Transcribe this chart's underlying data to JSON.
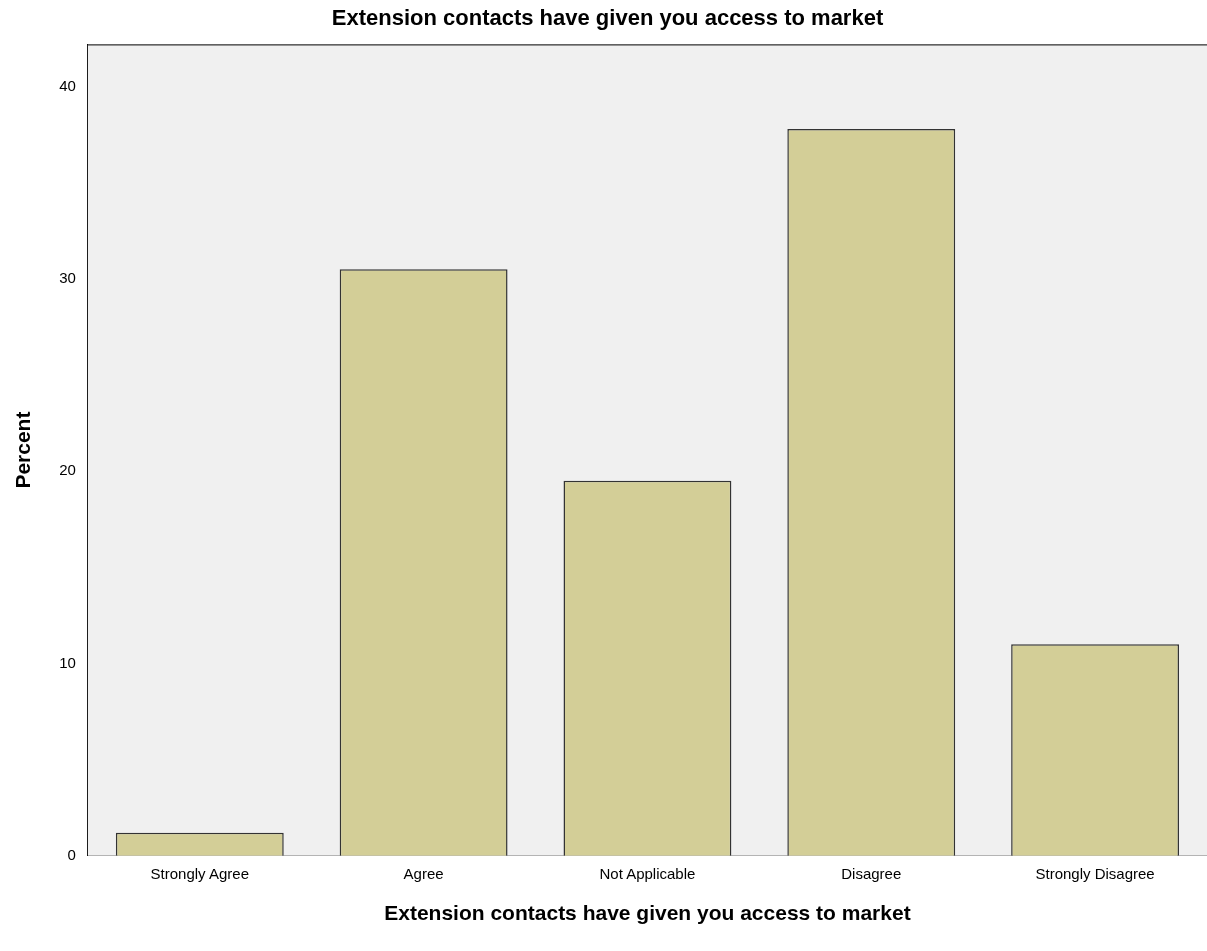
{
  "chart_data": {
    "type": "bar",
    "title": "Extension contacts have given you access to market",
    "xlabel": "Extension contacts have given you access to market",
    "ylabel": "Percent",
    "categories": [
      "Strongly Agree",
      "Agree",
      "Not Applicable",
      "Disagree",
      "Strongly Disagree"
    ],
    "values": [
      1.2,
      30.5,
      19.5,
      37.8,
      11.0
    ],
    "color": "#d3ce97",
    "ylim": [
      0,
      42.2
    ],
    "yticks": [
      0,
      10,
      20,
      30,
      40
    ],
    "grid": false,
    "legend": false
  }
}
